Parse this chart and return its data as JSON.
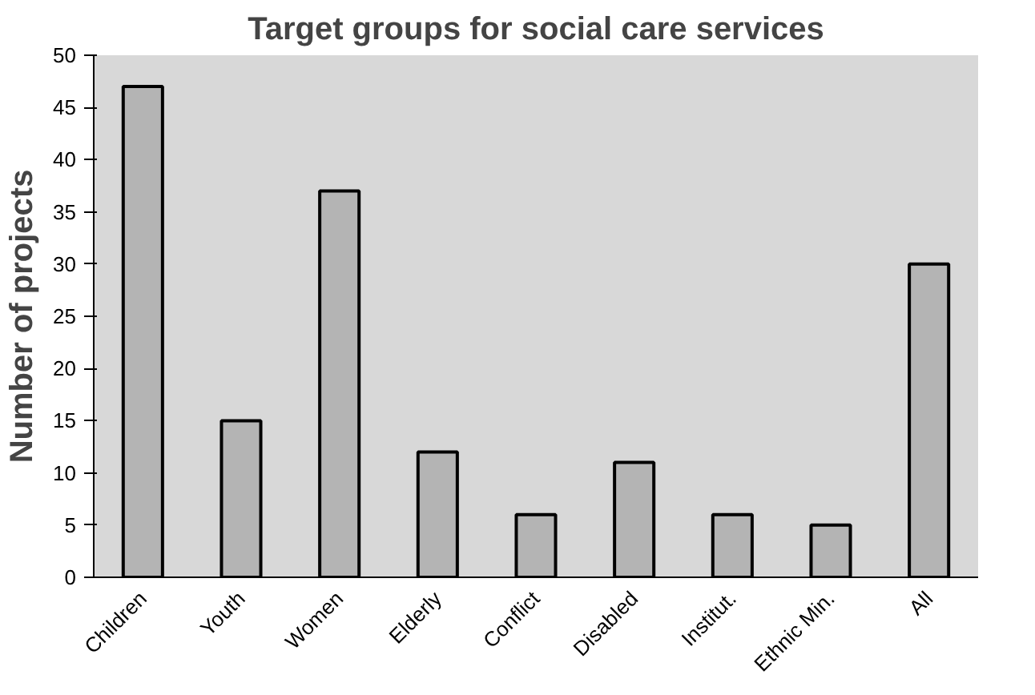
{
  "chart_data": {
    "type": "bar",
    "title": "Target groups for social care services",
    "ylabel": "Number of projects",
    "categories": [
      "Children",
      "Youth",
      "Women",
      "Elderly",
      "Conflict",
      "Disabled",
      "Institut.",
      "Ethnic Min.",
      "All"
    ],
    "values": [
      47,
      15,
      37,
      12,
      6,
      11,
      6,
      5,
      30
    ],
    "color": "#b4b4b4",
    "ylim": [
      0,
      50
    ],
    "yticks": [
      0,
      5,
      10,
      15,
      20,
      25,
      30,
      35,
      40,
      45,
      50
    ],
    "grid": false
  }
}
